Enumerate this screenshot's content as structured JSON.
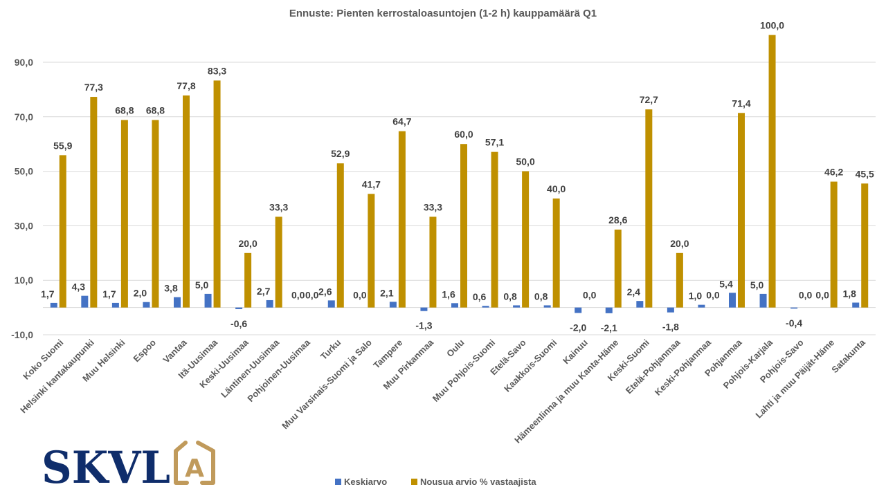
{
  "chart_data": {
    "type": "bar",
    "title": "Ennuste: Pienten kerrostaloasuntojen (1-2 h) kauppamäärä Q1",
    "xlabel": "",
    "ylabel": "",
    "ylim": [
      -10,
      100
    ],
    "yticks": [
      -10,
      10,
      30,
      50,
      70,
      90
    ],
    "ytick_labels": [
      "-10,0",
      "10,0",
      "30,0",
      "50,0",
      "70,0",
      "90,0"
    ],
    "grid": true,
    "legend_position": "bottom",
    "categories": [
      "Koko Suomi",
      "Helsinki kantakaupunki",
      "Muu Helsinki",
      "Espoo",
      "Vantaa",
      "Itä-Uusimaa",
      "Keski-Uusimaa",
      "Läntinen-Uusimaa",
      "Pohjoinen-Uusimaa",
      "Turku",
      "Muu Varsinais-Suomi ja Salo",
      "Tampere",
      "Muu Pirkanmaa",
      "Oulu",
      "Muu Pohjois-Suomi",
      "Etelä-Savo",
      "Kaakkois-Suomi",
      "Kainuu",
      "Hämeenlinna ja muu Kanta-Häme",
      "Keski-Suomi",
      "Etelä-Pohjanmaa",
      "Keski-Pohjanmaa",
      "Pohjanmaa",
      "Pohjois-Karjala",
      "Pohjois-Savo",
      "Lahti ja muu Päijät-Häme",
      "Satakunta"
    ],
    "series": [
      {
        "name": "Keskiarvo",
        "color": "#4472c4",
        "values": [
          1.7,
          4.3,
          1.7,
          2.0,
          3.8,
          5.0,
          -0.6,
          2.7,
          0.0,
          2.6,
          0.0,
          2.1,
          -1.3,
          1.6,
          0.6,
          0.8,
          0.8,
          -2.0,
          -2.1,
          2.4,
          -1.8,
          1.0,
          5.4,
          5.0,
          -0.4,
          0.0,
          1.8
        ],
        "labels": [
          "1,7",
          "4,3",
          "1,7",
          "2,0",
          "3,8",
          "5,0",
          "-0,6",
          "2,7",
          "0,0",
          "2,6",
          "0,0",
          "2,1",
          "-1,3",
          "1,6",
          "0,6",
          "0,8",
          "0,8",
          "-2,0",
          "-2,1",
          "2,4",
          "-1,8",
          "1,0",
          "5,4",
          "5,0",
          "-0,4",
          "0,0",
          "1,8"
        ]
      },
      {
        "name": "Nousua arvio % vastaajista",
        "color": "#bf9000",
        "values": [
          55.9,
          77.3,
          68.8,
          68.8,
          77.8,
          83.3,
          20.0,
          33.3,
          0.0,
          52.9,
          41.7,
          64.7,
          33.3,
          60.0,
          57.1,
          50.0,
          40.0,
          0.0,
          28.6,
          72.7,
          20.0,
          0.0,
          71.4,
          100.0,
          0.0,
          46.2,
          45.5
        ],
        "labels": [
          "55,9",
          "77,3",
          "68,8",
          "68,8",
          "77,8",
          "83,3",
          "20,0",
          "33,3",
          "0,0",
          "52,9",
          "41,7",
          "64,7",
          "33,3",
          "60,0",
          "57,1",
          "50,0",
          "40,0",
          "0,0",
          "28,6",
          "72,7",
          "20,0",
          "0,0",
          "71,4",
          "100,0",
          "0,0",
          "46,2",
          "45,5"
        ]
      }
    ]
  },
  "legend": {
    "items": [
      "Keskiarvo",
      "Nousua arvio % vastaajista"
    ]
  },
  "logo": {
    "text": "SKVL",
    "emblem_letter": "A"
  },
  "colors": {
    "series1": "#4472c4",
    "series2": "#bf9000",
    "grid": "#d9d9d9",
    "logo_navy": "#0f2d6b",
    "logo_gold": "#c09a5b"
  }
}
